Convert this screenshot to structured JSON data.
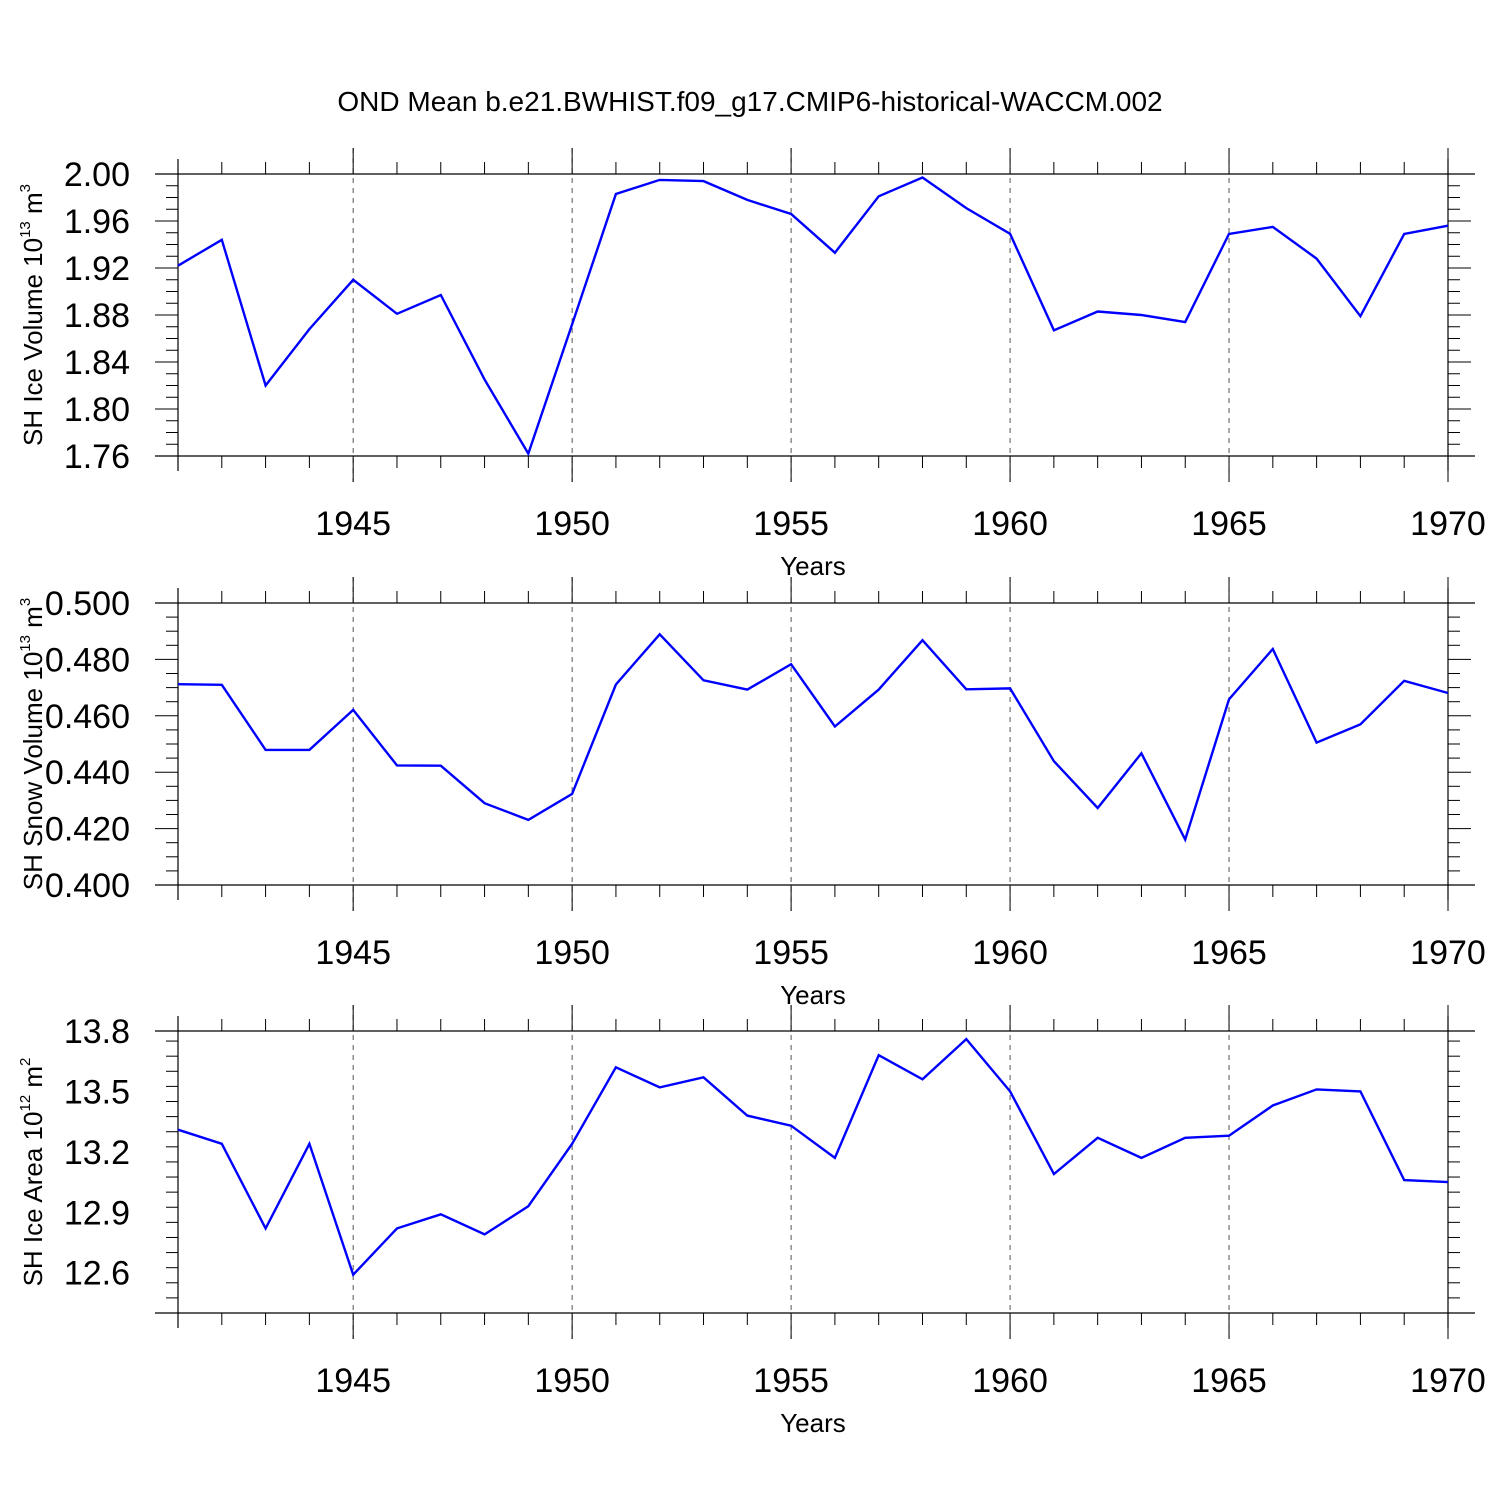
{
  "title": "OND Mean b.e21.BWHIST.f09_g17.CMIP6-historical-WACCM.002",
  "colors": {
    "line": "#0000ff",
    "axis": "#000000",
    "grid": "#555555"
  },
  "chart_data": [
    {
      "type": "line",
      "title": "",
      "xlabel": "Years",
      "ylabel": {
        "prefix": "SH Ice Volume 10",
        "exp": "13",
        "unit": " m",
        "unit_exp": "3"
      },
      "xlim": [
        1941,
        1970
      ],
      "ylim": [
        1.76,
        2.0
      ],
      "xticks": [
        1945,
        1950,
        1955,
        1960,
        1965,
        1970
      ],
      "yticks": [
        "1.76",
        "1.80",
        "1.84",
        "1.88",
        "1.92",
        "1.96",
        "2.00"
      ],
      "grid": "dashed vertical at major x ticks",
      "x": [
        1941,
        1942,
        1943,
        1944,
        1945,
        1946,
        1947,
        1948,
        1949,
        1950,
        1951,
        1952,
        1953,
        1954,
        1955,
        1956,
        1957,
        1958,
        1959,
        1960,
        1961,
        1962,
        1963,
        1964,
        1965,
        1966,
        1967,
        1968,
        1969,
        1970
      ],
      "series": [
        {
          "values": [
            1.922,
            1.944,
            1.82,
            1.868,
            1.91,
            1.881,
            1.897,
            1.825,
            1.762,
            1.872,
            1.983,
            1.995,
            1.994,
            1.978,
            1.966,
            1.933,
            1.981,
            1.997,
            1.971,
            1.949,
            1.867,
            1.883,
            1.88,
            1.874,
            1.949,
            1.955,
            1.928,
            1.879,
            1.949,
            1.956
          ]
        }
      ]
    },
    {
      "type": "line",
      "title": "",
      "xlabel": "Years",
      "ylabel": {
        "prefix": "SH Snow Volume 10",
        "exp": "13",
        "unit": " m",
        "unit_exp": "3"
      },
      "xlim": [
        1941,
        1970
      ],
      "ylim": [
        0.4,
        0.5
      ],
      "xticks": [
        1945,
        1950,
        1955,
        1960,
        1965,
        1970
      ],
      "yticks": [
        "0.400",
        "0.420",
        "0.440",
        "0.460",
        "0.480",
        "0.500"
      ],
      "grid": "dashed vertical at major x ticks",
      "x": [
        1941,
        1942,
        1943,
        1944,
        1945,
        1946,
        1947,
        1948,
        1949,
        1950,
        1951,
        1952,
        1953,
        1954,
        1955,
        1956,
        1957,
        1958,
        1959,
        1960,
        1961,
        1962,
        1963,
        1964,
        1965,
        1966,
        1967,
        1968,
        1969,
        1970
      ],
      "series": [
        {
          "values": [
            0.4712,
            0.471,
            0.4479,
            0.4479,
            0.4621,
            0.4424,
            0.4423,
            0.429,
            0.4231,
            0.4323,
            0.4711,
            0.4889,
            0.4726,
            0.4693,
            0.4783,
            0.4562,
            0.4693,
            0.4868,
            0.4694,
            0.4697,
            0.4439,
            0.4273,
            0.4467,
            0.4161,
            0.4658,
            0.4837,
            0.4505,
            0.457,
            0.4724,
            0.4681
          ]
        }
      ]
    },
    {
      "type": "line",
      "title": "",
      "xlabel": "Years",
      "ylabel": {
        "prefix": "SH Ice Area 10",
        "exp": "12",
        "unit": " m",
        "unit_exp": "2"
      },
      "xlim": [
        1941,
        1970
      ],
      "ylim": [
        12.4,
        13.8
      ],
      "xticks": [
        1945,
        1950,
        1955,
        1960,
        1965,
        1970
      ],
      "yticks": [
        "12.6",
        "12.9",
        "13.2",
        "13.5",
        "13.8"
      ],
      "grid": "dashed vertical at major x ticks",
      "x": [
        1941,
        1942,
        1943,
        1944,
        1945,
        1946,
        1947,
        1948,
        1949,
        1950,
        1951,
        1952,
        1953,
        1954,
        1955,
        1956,
        1957,
        1958,
        1959,
        1960,
        1961,
        1962,
        1963,
        1964,
        1965,
        1966,
        1967,
        1968,
        1969,
        1970
      ],
      "series": [
        {
          "values": [
            13.31,
            13.24,
            12.82,
            13.24,
            12.59,
            12.82,
            12.89,
            12.79,
            12.93,
            13.24,
            13.62,
            13.52,
            13.57,
            13.38,
            13.33,
            13.17,
            13.68,
            13.56,
            13.76,
            13.5,
            13.09,
            13.27,
            13.17,
            13.27,
            13.28,
            13.43,
            13.51,
            13.5,
            13.06,
            13.05
          ]
        }
      ]
    }
  ]
}
